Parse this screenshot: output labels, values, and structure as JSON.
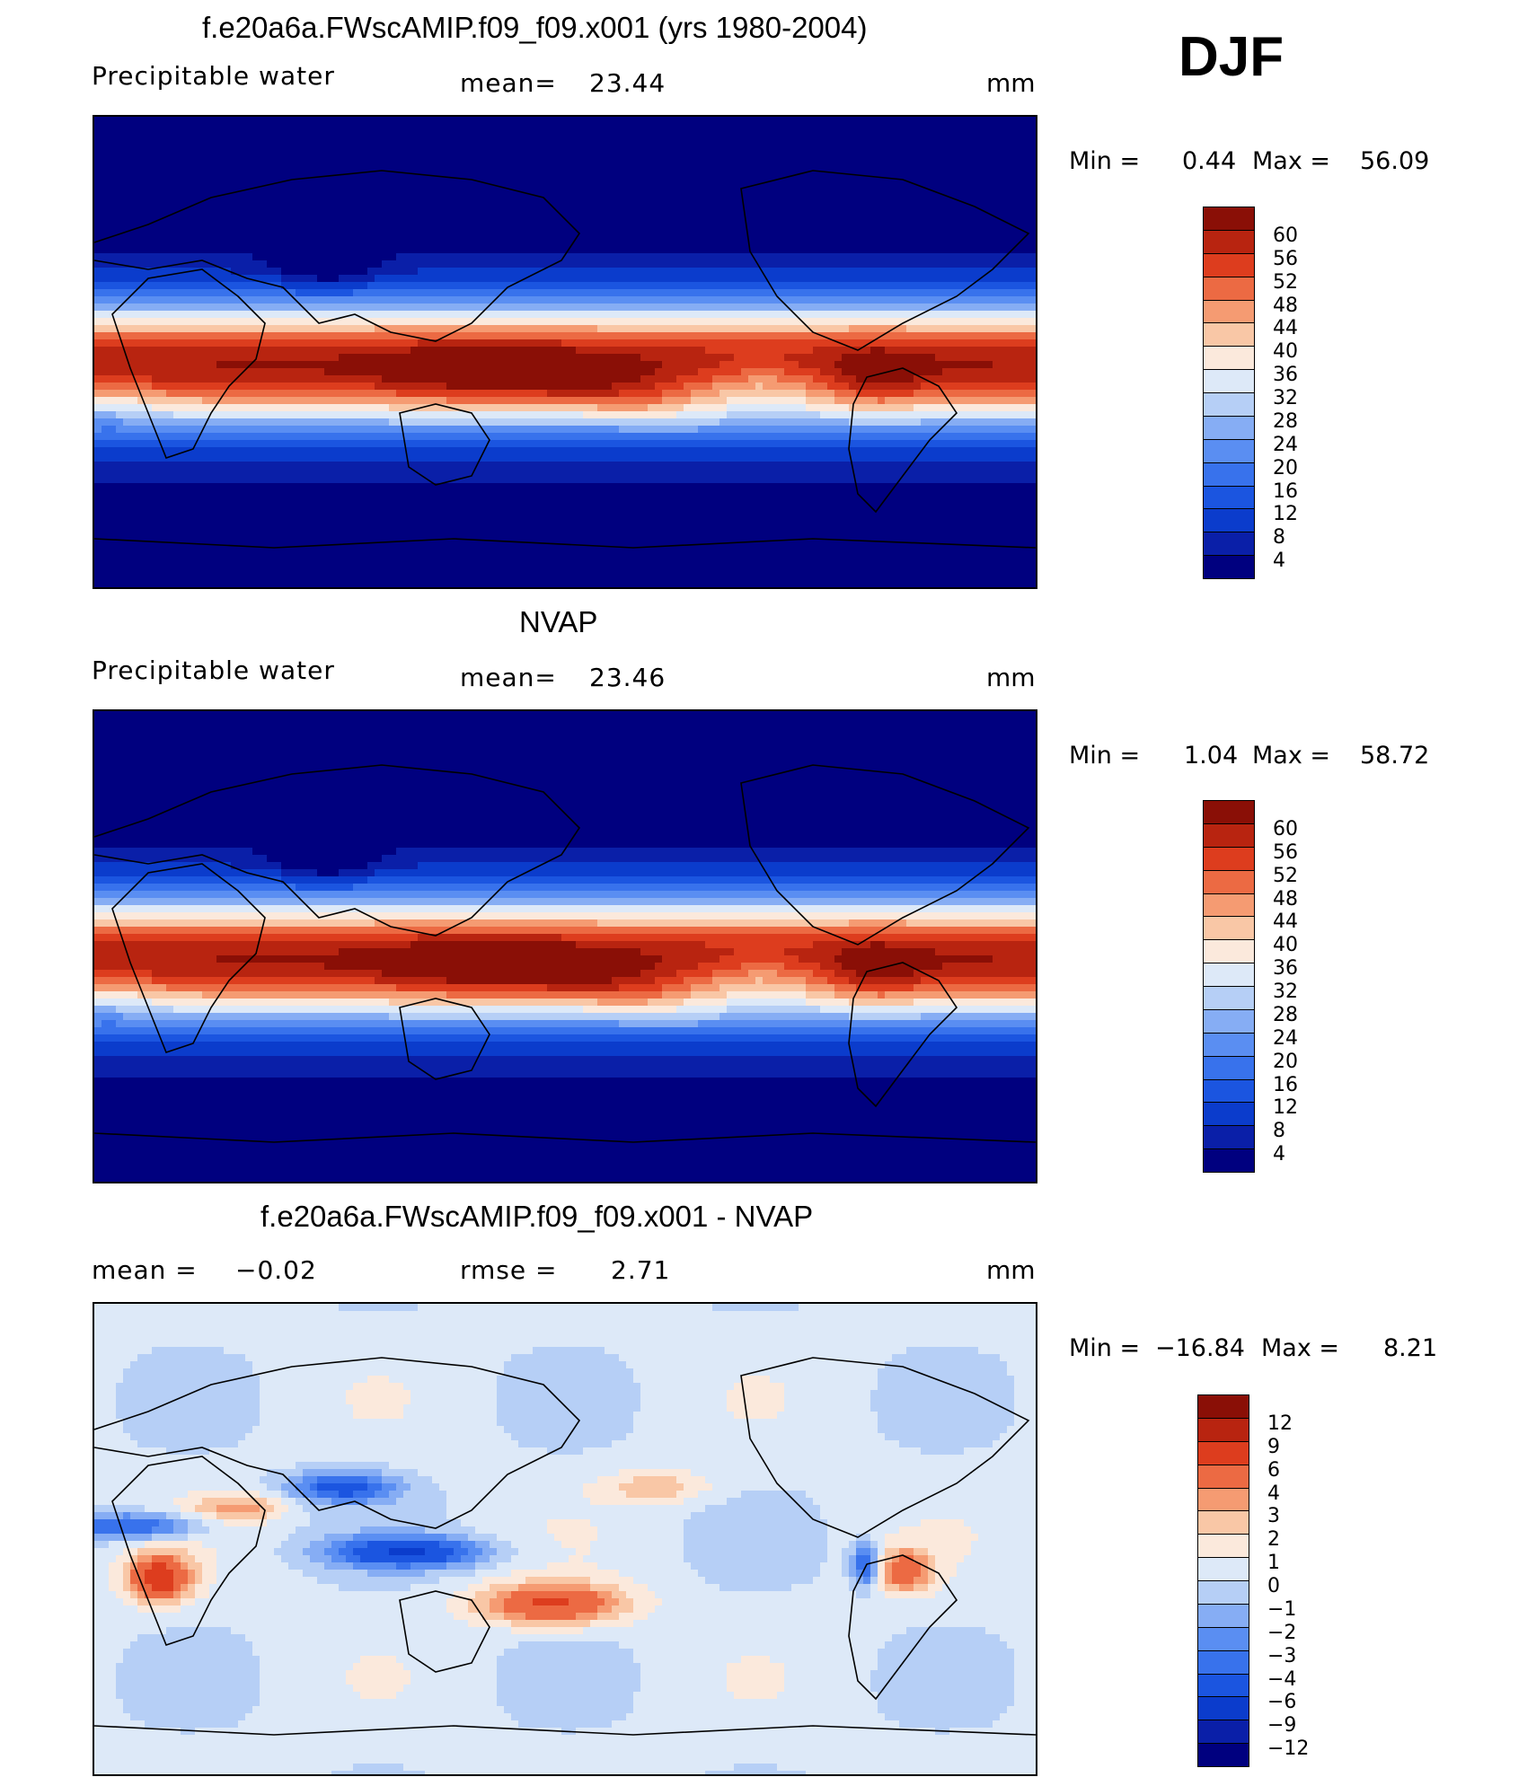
{
  "season": "DJF",
  "chart_data": [
    {
      "type": "heatmap",
      "title": "f.e20a6a.FWscAMIP.f09_f09.x001 (yrs 1980-2004)",
      "field_label": "Precipitable water",
      "stat_label": "mean=",
      "stat_value": "23.44",
      "units": "mm",
      "min_label": "Min =",
      "min_value": "0.44",
      "max_label": "Max =",
      "max_value": "56.09",
      "colorbar_levels": [
        "4",
        "8",
        "12",
        "16",
        "20",
        "24",
        "28",
        "32",
        "36",
        "40",
        "44",
        "48",
        "52",
        "56",
        "60"
      ],
      "colorbar_colors": [
        "#00007f",
        "#0a1fa8",
        "#0b3ccc",
        "#1b55e0",
        "#3872ec",
        "#5a8ef2",
        "#86adf4",
        "#b6cff6",
        "#dde9f8",
        "#fbe9dc",
        "#f9c7a6",
        "#f59b72",
        "#ec6a43",
        "#dd3d1e",
        "#b82410",
        "#8a0f06"
      ],
      "pattern": "abs"
    },
    {
      "type": "heatmap",
      "title": "NVAP",
      "field_label": "Precipitable water",
      "stat_label": "mean=",
      "stat_value": "23.46",
      "units": "mm",
      "min_label": "Min =",
      "min_value": "1.04",
      "max_label": "Max =",
      "max_value": "58.72",
      "colorbar_levels": [
        "4",
        "8",
        "12",
        "16",
        "20",
        "24",
        "28",
        "32",
        "36",
        "40",
        "44",
        "48",
        "52",
        "56",
        "60"
      ],
      "colorbar_colors": [
        "#00007f",
        "#0a1fa8",
        "#0b3ccc",
        "#1b55e0",
        "#3872ec",
        "#5a8ef2",
        "#86adf4",
        "#b6cff6",
        "#dde9f8",
        "#fbe9dc",
        "#f9c7a6",
        "#f59b72",
        "#ec6a43",
        "#dd3d1e",
        "#b82410",
        "#8a0f06"
      ],
      "pattern": "abs"
    },
    {
      "type": "heatmap",
      "title": "f.e20a6a.FWscAMIP.f09_f09.x001 - NVAP",
      "stat_label": "mean =",
      "stat_value": "−0.02",
      "stat2_label": "rmse =",
      "stat2_value": "2.71",
      "units": "mm",
      "min_label": "Min =",
      "min_value": "−16.84",
      "max_label": "Max =",
      "max_value": "8.21",
      "colorbar_levels": [
        "−12",
        "−9",
        "−6",
        "−4",
        "−3",
        "−2",
        "−1",
        "0",
        "1",
        "2",
        "3",
        "4",
        "6",
        "9",
        "12"
      ],
      "colorbar_colors": [
        "#00007f",
        "#0a1fa8",
        "#0b3ccc",
        "#1b55e0",
        "#3872ec",
        "#5a8ef2",
        "#86adf4",
        "#b6cff6",
        "#dde9f8",
        "#fbe9dc",
        "#f9c7a6",
        "#f59b72",
        "#ec6a43",
        "#dd3d1e",
        "#b82410",
        "#8a0f06"
      ],
      "pattern": "diff"
    }
  ]
}
